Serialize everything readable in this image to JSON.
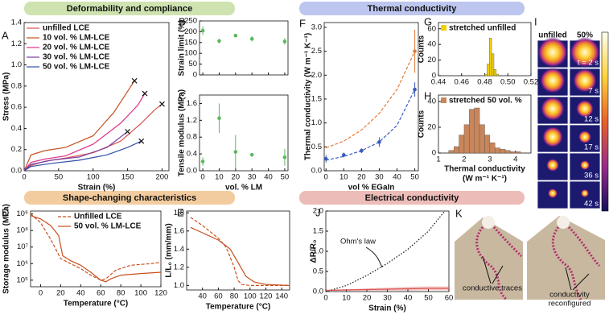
{
  "sections": [
    {
      "title": "Deformability and compliance"
    },
    {
      "title": "Thermal conductivity"
    },
    {
      "title": "Shape-changing characteristics"
    },
    {
      "title": "Electrical conductivity"
    }
  ],
  "thermal_images": {
    "panel": "I",
    "columns": [
      "unfilled",
      "50%"
    ],
    "times": [
      "t = 2 s",
      "7 s",
      "12 s",
      "17 s",
      "36 s",
      "42 s"
    ]
  },
  "photos": {
    "panel": "K",
    "labels": [
      "conductive traces",
      "conductivity",
      "reconfigured"
    ]
  },
  "chart_data": [
    {
      "panel": "A",
      "type": "line",
      "xlabel": "Strain (%)",
      "ylabel": "Stress (MPa)",
      "xlim": [
        0,
        210
      ],
      "ylim": [
        0,
        1.4
      ],
      "xticks": [
        0,
        50,
        100,
        150,
        200
      ],
      "yticks": [
        {
          "value": 0,
          "label": "0.0"
        },
        0.2,
        0.4,
        0.6,
        0.8,
        {
          "value": 1,
          "label": "1.0"
        },
        1.2,
        1.4
      ],
      "legend": "upper left",
      "end_marker": "x",
      "series": [
        {
          "name": "unfilled LCE",
          "color": "#d9534f",
          "x": [
            0,
            10,
            30,
            60,
            100,
            140,
            170,
            190,
            200
          ],
          "values": [
            0,
            0.05,
            0.09,
            0.12,
            0.17,
            0.28,
            0.45,
            0.58,
            0.63
          ]
        },
        {
          "name": "10 vol. % LM-LCE",
          "color": "#c8501e",
          "x": [
            0,
            10,
            30,
            60,
            100,
            130,
            150,
            160
          ],
          "values": [
            0,
            0.15,
            0.19,
            0.22,
            0.33,
            0.55,
            0.75,
            0.85
          ]
        },
        {
          "name": "20 vol. % LM-LCE",
          "color": "#e0308a",
          "x": [
            0,
            10,
            30,
            60,
            100,
            140,
            165,
            175
          ],
          "values": [
            0,
            0.08,
            0.11,
            0.14,
            0.25,
            0.45,
            0.62,
            0.73
          ]
        },
        {
          "name": "30 vol. % LM-LCE",
          "color": "#7b3fa0",
          "x": [
            0,
            10,
            40,
            80,
            120,
            150
          ],
          "values": [
            0,
            0.06,
            0.1,
            0.13,
            0.22,
            0.37
          ]
        },
        {
          "name": "50 vol. % LM-LCE",
          "color": "#2f4fa8",
          "x": [
            0,
            10,
            40,
            80,
            120,
            150,
            170
          ],
          "values": [
            0,
            0.04,
            0.07,
            0.1,
            0.15,
            0.22,
            0.28
          ]
        }
      ]
    },
    {
      "panel": "B",
      "type": "scatter",
      "ylabel": "Strain limit (%)",
      "xlim": [
        -2,
        52
      ],
      "ylim": [
        0,
        250
      ],
      "xticks": [
        0,
        10,
        20,
        30,
        40,
        50
      ],
      "show_xtick_labels": false,
      "yticks": [
        0,
        50,
        100,
        150,
        200,
        250
      ],
      "series": [
        {
          "color": "#5cb85c",
          "x": [
            0,
            10,
            20,
            30,
            50
          ],
          "values": [
            205,
            157,
            182,
            167,
            155
          ],
          "errors": [
            20,
            10,
            5,
            12,
            15
          ]
        }
      ]
    },
    {
      "panel": "C",
      "type": "scatter",
      "xlabel": "vol. % LM",
      "ylabel": "Tensile modulus (MPa)",
      "xlim": [
        -2,
        52
      ],
      "ylim": [
        0,
        1.8
      ],
      "xticks": [
        0,
        10,
        20,
        30,
        40,
        50
      ],
      "yticks": [
        {
          "value": 0,
          "label": "0.0"
        },
        0.4,
        0.8,
        1.2,
        1.6
      ],
      "series": [
        {
          "color": "#5cb85c",
          "x": [
            0,
            10,
            20,
            30,
            50
          ],
          "values": [
            0.22,
            1.25,
            0.45,
            0.38,
            0.32
          ],
          "errors": [
            0.1,
            0.35,
            0.4,
            0.03,
            0.2
          ]
        }
      ]
    },
    {
      "panel": "F",
      "type": "scatter",
      "xlabel": "vol % EGaIn",
      "ylabel": "Thermal conductivity (W m⁻¹ K⁻¹)",
      "xlim": [
        -1,
        52
      ],
      "ylim": [
        0,
        3.1
      ],
      "xticks": [
        0,
        10,
        20,
        30,
        40,
        50
      ],
      "yticks": [
        {
          "value": 0,
          "label": "0.0"
        },
        0.5,
        {
          "value": 1,
          "label": "1.0"
        },
        1.5,
        {
          "value": 2,
          "label": "2.0"
        },
        2.5,
        {
          "value": 3,
          "label": "3.0"
        }
      ],
      "series": [
        {
          "color": "#e07b39",
          "x": [
            50
          ],
          "values": [
            2.5
          ],
          "errors": [
            0.45
          ]
        },
        {
          "color": "#3a5bbf",
          "x": [
            0,
            10,
            20,
            30,
            50
          ],
          "values": [
            0.25,
            0.33,
            0.42,
            0.6,
            1.7
          ],
          "errors": [
            0.08,
            0.05,
            0.05,
            0.1,
            0.15
          ]
        }
      ],
      "fits": [
        {
          "color": "#e07b39",
          "x": [
            0,
            10,
            20,
            30,
            40,
            50
          ],
          "values": [
            0.48,
            0.62,
            0.85,
            1.2,
            1.7,
            2.5
          ]
        },
        {
          "color": "#3a5bbf",
          "x": [
            0,
            10,
            20,
            30,
            40,
            50
          ],
          "values": [
            0.22,
            0.3,
            0.42,
            0.6,
            0.95,
            1.7
          ]
        }
      ]
    },
    {
      "panel": "G",
      "type": "histogram",
      "ylabel": "Counts",
      "xlim": [
        0.44,
        0.52
      ],
      "ylim": [
        0,
        68
      ],
      "xticks": [
        0.44,
        0.46,
        0.48,
        {
          "value": 0.5,
          "label": "0.50"
        },
        0.52
      ],
      "yticks": [
        0,
        20,
        40,
        60
      ],
      "legend": "upper left",
      "bins": [
        0.48,
        0.482,
        0.484,
        0.486,
        0.488,
        0.49,
        0.492
      ],
      "series": [
        {
          "name": "stretched unfilled",
          "color": "#f0d000",
          "values": [
            2,
            15,
            48,
            28,
            8,
            2
          ]
        }
      ]
    },
    {
      "panel": "H",
      "type": "histogram",
      "xlabel": [
        "Thermal conductivity",
        "(W m⁻¹ K⁻¹)"
      ],
      "ylabel": "Counts",
      "xlim": [
        1,
        4.6
      ],
      "ylim": [
        0,
        45
      ],
      "xticks": [
        1,
        2,
        3,
        4
      ],
      "yticks": [
        0,
        20,
        40
      ],
      "legend": "upper left",
      "bins": [
        1.4,
        1.6,
        1.8,
        2,
        2.2,
        2.4,
        2.6,
        2.8,
        3,
        3.2,
        3.4,
        3.6,
        3.8,
        4,
        4.2
      ],
      "series": [
        {
          "name": "stretched 50 vol. %",
          "color": "#c8865a",
          "values": [
            2,
            5,
            14,
            22,
            34,
            35,
            22,
            14,
            8,
            4,
            3,
            2,
            1,
            1
          ]
        }
      ]
    },
    {
      "panel": "D",
      "type": "line",
      "log_y": true,
      "xlabel": "Temperature (°C)",
      "ylabel": "Storage modulus (MPa)",
      "xlim": [
        -10,
        120
      ],
      "ylim": [
        40000,
        1500000000
      ],
      "xticks": [
        0,
        20,
        40,
        60,
        80,
        100,
        120
      ],
      "yticks": [
        {
          "value": 100000,
          "label": "10⁵"
        },
        {
          "value": 1000000,
          "label": "10⁶"
        },
        {
          "value": 10000000,
          "label": "10⁷"
        },
        {
          "value": 100000000,
          "label": "10⁸"
        },
        {
          "value": 1000000000,
          "label": "10⁹"
        }
      ],
      "legend": "upper right",
      "series": [
        {
          "name": "Unfilled LCE",
          "color": "#c8501e",
          "dash": "dashed",
          "x": [
            -10,
            0,
            10,
            20,
            30,
            40,
            50,
            60,
            65,
            75,
            90,
            110,
            120
          ],
          "values": [
            1000000000,
            300000000,
            30000000,
            2000000,
            1000000,
            500000,
            200000,
            100000,
            120000,
            400000,
            800000,
            1000000,
            1200000
          ]
        },
        {
          "name": "50 vol. % LM-LCE",
          "color": "#c8501e",
          "x": [
            -10,
            0,
            10,
            18,
            22,
            30,
            40,
            50,
            60,
            65,
            70,
            80,
            100,
            120
          ],
          "values": [
            800000000,
            500000000,
            200000000,
            50000000,
            3000000,
            1500000,
            800000,
            300000,
            100000,
            80000,
            120000,
            200000,
            250000,
            300000
          ]
        }
      ]
    },
    {
      "panel": "E",
      "type": "line",
      "xlabel": "Temperature (°C)",
      "ylabel": "L/L₀ (mm/mm)",
      "xlim": [
        20,
        150
      ],
      "ylim": [
        0.95,
        1.82
      ],
      "xticks": [
        40,
        60,
        80,
        100,
        120,
        140
      ],
      "yticks": [
        {
          "value": 1,
          "label": "1.0"
        },
        1.2,
        1.4,
        1.6,
        1.8
      ],
      "series": [
        {
          "color": "#c8501e",
          "dash": "dashed",
          "x": [
            25,
            40,
            60,
            70,
            80,
            85,
            90,
            100,
            150
          ],
          "values": [
            1.75,
            1.66,
            1.52,
            1.42,
            1.2,
            1.05,
            1.01,
            1,
            1
          ]
        },
        {
          "color": "#c8501e",
          "x": [
            25,
            40,
            60,
            75,
            85,
            95,
            105,
            120,
            150
          ],
          "values": [
            1.64,
            1.58,
            1.5,
            1.4,
            1.25,
            1.1,
            1.04,
            1.01,
            1
          ]
        }
      ]
    },
    {
      "panel": "J",
      "type": "line",
      "xlabel": "Strain (%)",
      "ylabel": "ΔR/R₀",
      "annotation": "Ohm's law",
      "xlim": [
        0,
        60
      ],
      "ylim": [
        0,
        2
      ],
      "xticks": [
        0,
        10,
        20,
        30,
        40,
        50,
        60
      ],
      "yticks": [
        {
          "value": 0,
          "label": "0.0"
        },
        0.5,
        {
          "value": 1,
          "label": "1.0"
        },
        1.5,
        {
          "value": 2,
          "label": "2.0"
        }
      ],
      "series": [
        {
          "color": "#111111",
          "dash": "dotted",
          "x": [
            0,
            10,
            20,
            30,
            40,
            50,
            58
          ],
          "values": [
            0,
            0.15,
            0.4,
            0.7,
            1.05,
            1.5,
            2
          ]
        },
        {
          "color": "#d9534f",
          "x": [
            0,
            10,
            20,
            30,
            40,
            50,
            60
          ],
          "values": [
            0.03,
            0.04,
            0.05,
            0.06,
            0.07,
            0.08,
            0.08
          ],
          "errors": [
            0.01,
            0.02,
            0.03,
            0.04,
            0.05,
            0.05,
            0.05
          ]
        }
      ]
    }
  ]
}
